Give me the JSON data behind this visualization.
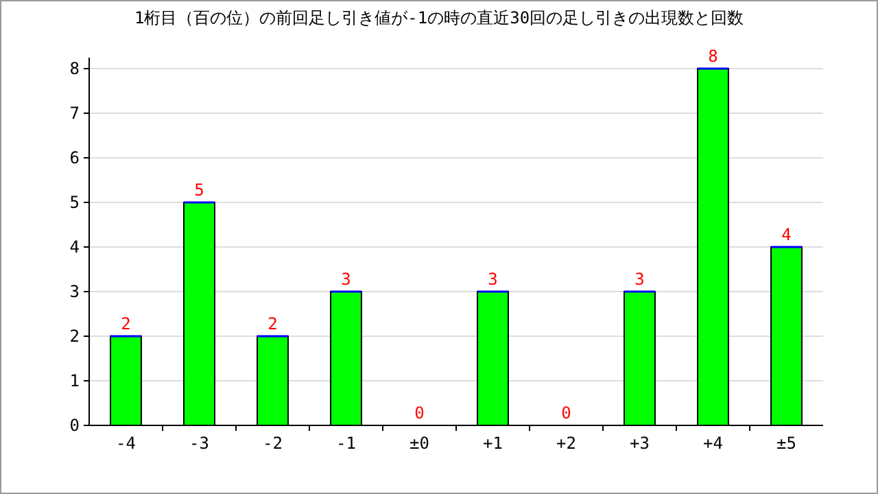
{
  "chart_data": {
    "type": "bar",
    "title": "1桁目（百の位）の前回足し引き値が-1の時の直近30回の足し引きの出現数と回数",
    "categories": [
      "-4",
      "-3",
      "-2",
      "-1",
      "±0",
      "+1",
      "+2",
      "+3",
      "+4",
      "±5"
    ],
    "values": [
      2,
      5,
      2,
      3,
      0,
      3,
      0,
      3,
      8,
      4
    ],
    "color": "#00ff00",
    "ylim": [
      0,
      8
    ],
    "yticks": [
      0,
      1,
      2,
      3,
      4,
      5,
      6,
      7,
      8
    ],
    "grid": "y",
    "data_labels": true
  }
}
